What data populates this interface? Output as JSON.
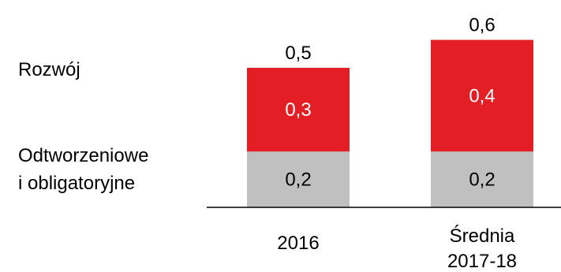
{
  "chart_data": {
    "type": "bar",
    "stacked": true,
    "categories": [
      [
        "2016"
      ],
      [
        "Średnia",
        "2017-18"
      ]
    ],
    "series": [
      {
        "name": "Odtworzeniowe i obligatoryjne",
        "legend_lines": [
          "Odtworzeniowe",
          "i obligatoryjne"
        ],
        "values": [
          0.2,
          0.2
        ],
        "labels": [
          "0,2",
          "0,2"
        ],
        "color": "#c0c0c0",
        "label_color": "#000000"
      },
      {
        "name": "Rozwój",
        "legend_lines": [
          "Rozwój"
        ],
        "values": [
          0.3,
          0.4
        ],
        "labels": [
          "0,3",
          "0,4"
        ],
        "color": "#e31e24",
        "label_color": "#ffffff"
      }
    ],
    "totals": [
      0.5,
      0.6
    ],
    "total_labels": [
      "0,5",
      "0,6"
    ],
    "ylim": [
      0,
      0.6
    ],
    "grid": false,
    "legend": "left, aligned with segments"
  }
}
